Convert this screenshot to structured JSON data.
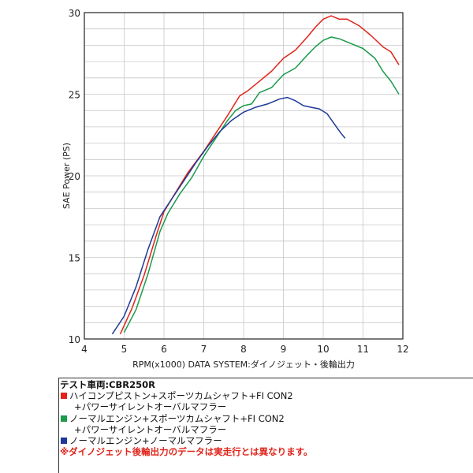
{
  "chart_data": {
    "type": "line",
    "xlabel": "RPM(x1000) DATA SYSTEM:ダイノジェット・後輪出力",
    "ylabel": "SAE Power (PS)",
    "xlim": [
      4,
      12
    ],
    "ylim": [
      10,
      30
    ],
    "x_ticks": [
      "4",
      "5",
      "6",
      "7",
      "8",
      "9",
      "10",
      "11",
      "12"
    ],
    "y_ticks": [
      "10",
      "15",
      "20",
      "25",
      "30"
    ],
    "grid": true,
    "series": [
      {
        "color": "#e0241b",
        "x": [
          4.9,
          5.2,
          5.5,
          5.8,
          6.0,
          6.3,
          6.6,
          7.0,
          7.3,
          7.6,
          7.9,
          8.1,
          8.4,
          8.7,
          9.0,
          9.3,
          9.6,
          9.8,
          10.0,
          10.2,
          10.4,
          10.6,
          10.9,
          11.2,
          11.5,
          11.7,
          11.9
        ],
        "y": [
          10.3,
          11.9,
          13.9,
          16.3,
          17.8,
          19.0,
          20.2,
          21.5,
          22.6,
          23.7,
          24.9,
          25.2,
          25.8,
          26.4,
          27.2,
          27.7,
          28.5,
          29.1,
          29.6,
          29.8,
          29.6,
          29.6,
          29.2,
          28.6,
          27.9,
          27.6,
          26.8
        ]
      },
      {
        "color": "#1a9a4a",
        "x": [
          5.0,
          5.3,
          5.6,
          5.9,
          6.1,
          6.4,
          6.7,
          7.0,
          7.3,
          7.6,
          7.8,
          8.0,
          8.2,
          8.4,
          8.7,
          9.0,
          9.3,
          9.6,
          9.8,
          10.0,
          10.2,
          10.4,
          10.7,
          11.0,
          11.3,
          11.5,
          11.7,
          11.9
        ],
        "y": [
          10.4,
          11.8,
          14.0,
          16.6,
          17.7,
          18.9,
          19.9,
          21.2,
          22.3,
          23.4,
          24.0,
          24.3,
          24.4,
          25.1,
          25.4,
          26.2,
          26.6,
          27.4,
          27.9,
          28.3,
          28.5,
          28.4,
          28.1,
          27.8,
          27.2,
          26.4,
          25.8,
          25.0
        ]
      },
      {
        "color": "#1f3a96",
        "x": [
          4.7,
          5.0,
          5.3,
          5.6,
          5.9,
          6.2,
          6.5,
          6.8,
          7.1,
          7.4,
          7.7,
          8.0,
          8.3,
          8.6,
          8.9,
          9.1,
          9.3,
          9.5,
          9.7,
          9.9,
          10.1,
          10.3,
          10.45,
          10.55
        ],
        "y": [
          10.3,
          11.4,
          13.2,
          15.5,
          17.5,
          18.6,
          19.7,
          20.8,
          21.8,
          22.7,
          23.4,
          23.9,
          24.2,
          24.4,
          24.7,
          24.8,
          24.6,
          24.3,
          24.2,
          24.1,
          23.8,
          23.1,
          22.6,
          22.3
        ]
      }
    ]
  },
  "legend": {
    "title": "テスト車両:CBR250R",
    "items": [
      {
        "color": "#e0241b",
        "line1": "ハイコンプピストン+スポーツカムシャフト+FI CON2",
        "line2": "+パワーサイレントオーバルマフラー"
      },
      {
        "color": "#1a9a4a",
        "line1": "ノーマルエンジン+スポーツカムシャフト+FI CON2",
        "line2": "+パワーサイレントオーバルマフラー"
      },
      {
        "color": "#1f3a96",
        "line1": "ノーマルエンジン+ノーマルマフラー",
        "line2": ""
      }
    ],
    "note": "※ダイノジェット後輪出力のデータは実走行とは異なります。"
  }
}
